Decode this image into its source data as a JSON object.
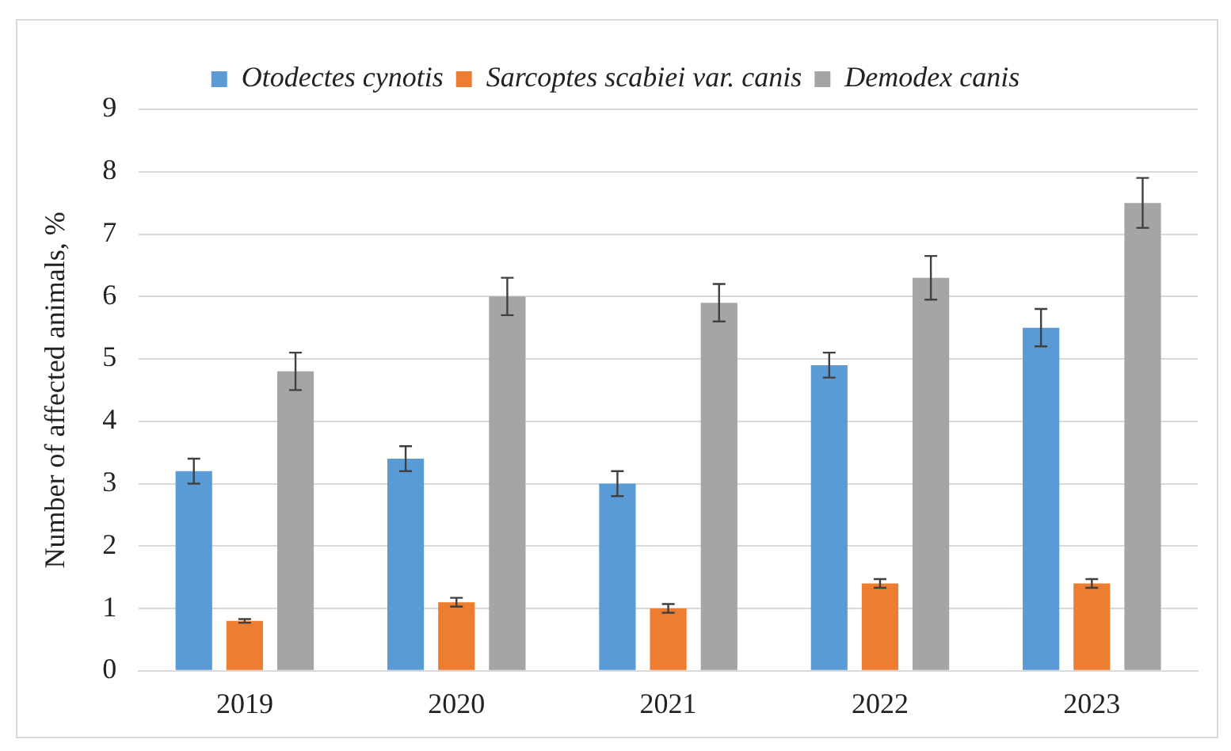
{
  "chart_data": {
    "type": "bar",
    "ylabel": "Number of affected animals, %",
    "categories": [
      "2019",
      "2020",
      "2021",
      "2022",
      "2023"
    ],
    "series": [
      {
        "name": "Otodectes cynotis",
        "color": "#5b9bd5",
        "values": [
          3.2,
          3.4,
          3.0,
          4.9,
          5.5
        ],
        "errors": [
          0.2,
          0.2,
          0.2,
          0.2,
          0.3
        ]
      },
      {
        "name": "Sarcoptes scabiei var. canis",
        "color": "#ed7d31",
        "values": [
          0.8,
          1.1,
          1.0,
          1.4,
          1.4
        ],
        "errors": [
          0.03,
          0.07,
          0.07,
          0.07,
          0.07
        ]
      },
      {
        "name": "Demodex canis",
        "color": "#a5a5a5",
        "values": [
          4.8,
          6.0,
          5.9,
          6.3,
          7.5
        ],
        "errors": [
          0.3,
          0.3,
          0.3,
          0.35,
          0.4
        ]
      }
    ],
    "ylim": [
      0,
      9
    ],
    "yticks": [
      0,
      1,
      2,
      3,
      4,
      5,
      6,
      7,
      8,
      9
    ],
    "grid": "y",
    "legend": "top"
  }
}
